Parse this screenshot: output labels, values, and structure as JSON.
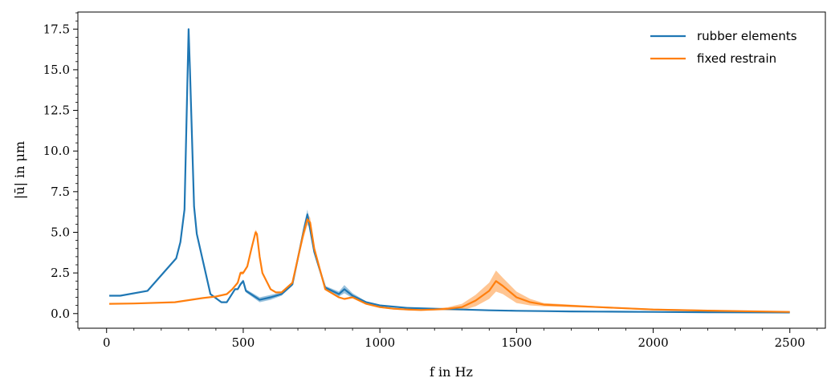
{
  "chart_data": {
    "type": "line",
    "xlabel": "f in Hz",
    "ylabel": "|ū| in μm",
    "xlim": [
      -105,
      2630
    ],
    "ylim": [
      -0.9,
      18.55
    ],
    "xticks": [
      0,
      500,
      1000,
      1500,
      2000,
      2500
    ],
    "xtick_labels": [
      "0",
      "500",
      "1000",
      "1500",
      "2000",
      "2500"
    ],
    "yticks": [
      0.0,
      2.5,
      5.0,
      7.5,
      10.0,
      12.5,
      15.0,
      17.5
    ],
    "ytick_labels": [
      "0.0",
      "2.5",
      "5.0",
      "7.5",
      "10.0",
      "12.5",
      "15.0",
      "17.5"
    ],
    "grid": false,
    "legend_position": "top-right",
    "series": [
      {
        "name": "rubber elements",
        "color": "#1f77b4",
        "x": [
          10,
          50,
          150,
          255,
          270,
          285,
          300,
          305,
          320,
          330,
          380,
          420,
          440,
          470,
          480,
          490,
          500,
          510,
          560,
          600,
          640,
          680,
          720,
          735,
          760,
          800,
          850,
          870,
          900,
          950,
          1000,
          1100,
          1200,
          1300,
          1400,
          1500,
          1600,
          1700,
          1800,
          1900,
          2000,
          2200,
          2500
        ],
        "y": [
          1.1,
          1.1,
          1.4,
          3.4,
          4.4,
          6.4,
          17.5,
          15.0,
          6.6,
          4.9,
          1.2,
          0.7,
          0.7,
          1.5,
          1.5,
          1.8,
          2.0,
          1.4,
          0.85,
          1.0,
          1.2,
          1.8,
          5.0,
          6.1,
          3.8,
          1.6,
          1.2,
          1.5,
          1.1,
          0.7,
          0.5,
          0.35,
          0.3,
          0.25,
          0.2,
          0.17,
          0.15,
          0.13,
          0.12,
          0.11,
          0.1,
          0.08,
          0.07
        ],
        "band": [
          0,
          0,
          0,
          0,
          0,
          0,
          0,
          0,
          0,
          0,
          0,
          0,
          0,
          0,
          0,
          0.1,
          0.1,
          0.1,
          0.15,
          0.15,
          0.1,
          0.1,
          0.3,
          0.3,
          0.1,
          0.1,
          0.15,
          0.25,
          0.15,
          0.05,
          0.05,
          0,
          0,
          0,
          0,
          0,
          0,
          0,
          0,
          0,
          0,
          0,
          0
        ]
      },
      {
        "name": "fixed restrain",
        "color": "#ff7f0e",
        "x": [
          10,
          100,
          250,
          350,
          400,
          440,
          460,
          480,
          490,
          500,
          515,
          530,
          545,
          550,
          560,
          570,
          600,
          620,
          640,
          680,
          720,
          735,
          745,
          760,
          800,
          850,
          870,
          900,
          950,
          1000,
          1050,
          1100,
          1150,
          1200,
          1250,
          1300,
          1350,
          1400,
          1425,
          1450,
          1500,
          1550,
          1600,
          1800,
          2000,
          2200,
          2500
        ],
        "y": [
          0.6,
          0.62,
          0.7,
          0.95,
          1.05,
          1.2,
          1.5,
          1.9,
          2.5,
          2.5,
          2.9,
          4.0,
          5.0,
          4.9,
          3.5,
          2.5,
          1.5,
          1.3,
          1.3,
          1.9,
          4.9,
          5.8,
          5.6,
          4.0,
          1.5,
          1.0,
          0.9,
          1.0,
          0.6,
          0.4,
          0.3,
          0.25,
          0.22,
          0.25,
          0.3,
          0.4,
          0.8,
          1.4,
          2.0,
          1.7,
          1.0,
          0.7,
          0.55,
          0.4,
          0.25,
          0.18,
          0.1
        ],
        "band": [
          0,
          0,
          0,
          0,
          0,
          0,
          0.05,
          0.1,
          0.1,
          0.1,
          0.1,
          0.15,
          0.15,
          0.15,
          0.1,
          0.1,
          0.05,
          0.05,
          0.05,
          0.05,
          0.3,
          0.35,
          0.3,
          0.2,
          0.05,
          0.05,
          0.05,
          0.05,
          0.05,
          0.05,
          0.05,
          0.05,
          0.05,
          0.05,
          0.1,
          0.2,
          0.35,
          0.5,
          0.65,
          0.5,
          0.35,
          0.2,
          0.1,
          0.05,
          0.05,
          0.05,
          0
        ]
      }
    ]
  }
}
